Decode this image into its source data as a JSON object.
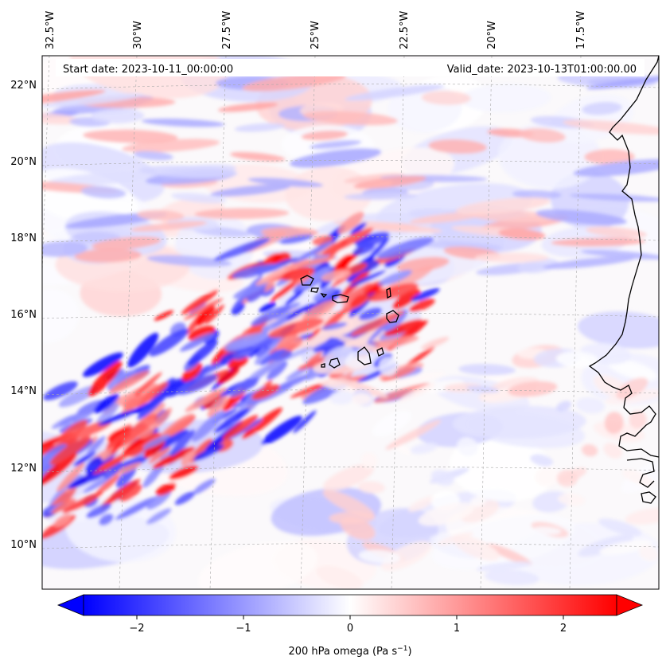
{
  "header": {
    "start_date": "Start date: 2023-10-11_00:00:00",
    "valid_date": "Valid_date: 2023-10-13T01:00:00.00"
  },
  "map": {
    "projection": "Lambert conformal",
    "lon_labels": [
      "32.5°W",
      "30°W",
      "27.5°W",
      "25°W",
      "22.5°W",
      "20°W",
      "17.5°W"
    ],
    "lat_labels": [
      "22°N",
      "20°N",
      "18°N",
      "16°N",
      "14°N",
      "12°N",
      "10°N"
    ],
    "gridlines": true,
    "coastlines": [
      "Cape Verde islands",
      "West African coast (Mauritania, Senegal, Gambia, Guinea-Bissau)"
    ]
  },
  "field": {
    "variable": "200 hPa omega",
    "range": [
      -2.5,
      2.5
    ],
    "colormap": "bwr",
    "color_negative": "#0000ff",
    "color_zero": "#ffffff",
    "color_positive": "#ff0000"
  },
  "colorbar": {
    "ticks": [
      "−2",
      "−1",
      "0",
      "1",
      "2"
    ],
    "tick_values": [
      -2,
      -1,
      0,
      1,
      2
    ],
    "label": "200 hPa omega (Pa s",
    "label_sup": "−1",
    "label_end": ")",
    "extend": "both"
  }
}
